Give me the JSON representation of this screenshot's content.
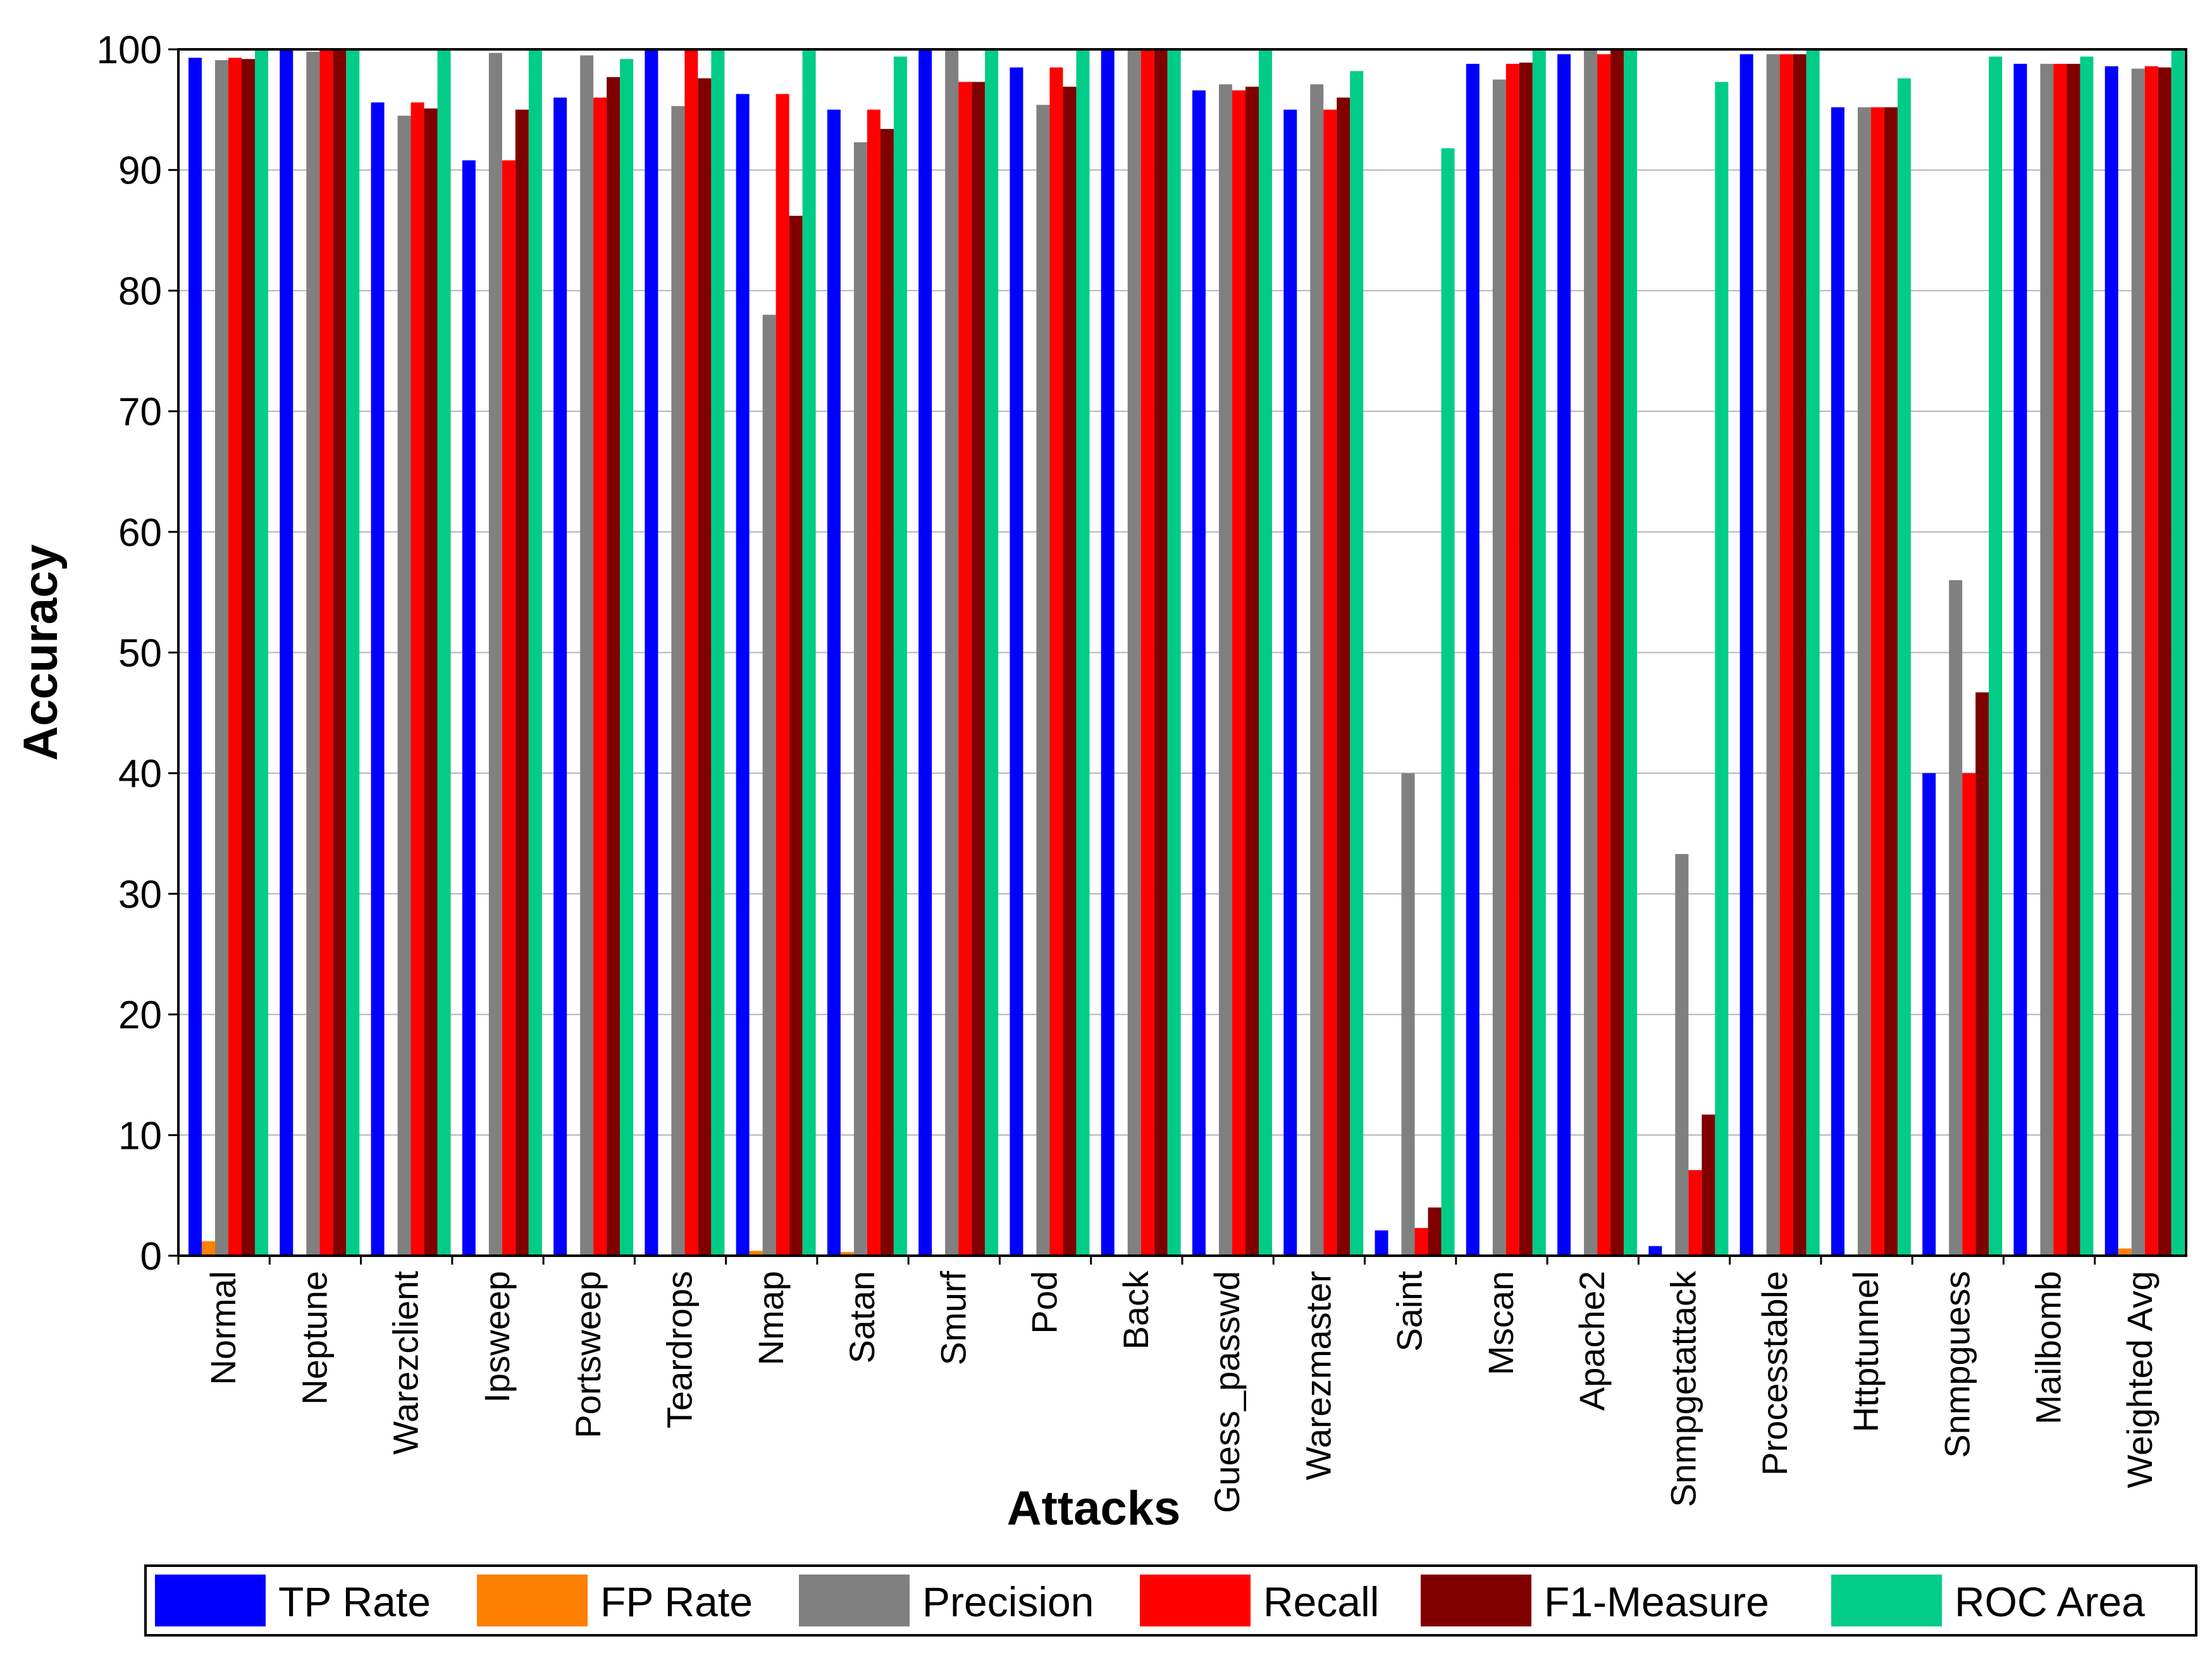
{
  "chart_data": {
    "type": "bar",
    "xlabel": "Attacks",
    "ylabel": "Accuracy",
    "ylim": [
      0,
      100
    ],
    "yticks": [
      "0",
      "10",
      "20",
      "30",
      "40",
      "50",
      "60",
      "70",
      "80",
      "90",
      "100"
    ],
    "grid": "horizontal",
    "legend_position": "bottom",
    "categories": [
      "Normal",
      "Neptune",
      "Warezclient",
      "Ipsweep",
      "Portsweep",
      "Teardrops",
      "Nmap",
      "Satan",
      "Smurf",
      "Pod",
      "Back",
      "Guess_passwd",
      "Warezmaster",
      "Saint",
      "Mscan",
      "Apache2",
      "Snmpgetattack",
      "Processtable",
      "Httptunnel",
      "Snmpguess",
      "Mailbomb",
      "Weighted Avg"
    ],
    "series": [
      {
        "name": "TP Rate",
        "color": "#0000ff",
        "values": [
          99.3,
          100,
          95.6,
          90.8,
          96.0,
          100,
          96.3,
          95.0,
          100,
          98.5,
          100,
          96.6,
          95.0,
          2.1,
          98.8,
          99.6,
          0.8,
          99.6,
          95.2,
          40.0,
          98.8,
          98.6
        ]
      },
      {
        "name": "FP Rate",
        "color": "#ff7f00",
        "values": [
          1.2,
          0,
          0,
          0,
          0,
          0,
          0.4,
          0.3,
          0,
          0,
          0,
          0,
          0,
          0,
          0,
          0,
          0,
          0,
          0,
          0,
          0,
          0.6
        ]
      },
      {
        "name": "Precision",
        "color": "#808080",
        "values": [
          99.1,
          99.8,
          94.5,
          99.7,
          99.5,
          95.3,
          78.0,
          92.3,
          100,
          95.4,
          100,
          97.1,
          97.1,
          40.0,
          97.5,
          100,
          33.3,
          99.6,
          95.2,
          56.0,
          98.8,
          98.4
        ]
      },
      {
        "name": "Recall",
        "color": "#ff0000",
        "values": [
          99.3,
          100,
          95.6,
          90.8,
          96.0,
          100,
          96.3,
          95.0,
          97.3,
          98.5,
          100,
          96.6,
          95.0,
          2.3,
          98.8,
          99.6,
          7.1,
          99.6,
          95.2,
          40.0,
          98.8,
          98.6
        ]
      },
      {
        "name": "F1-Measure",
        "color": "#800000",
        "values": [
          99.2,
          99.9,
          95.1,
          95.0,
          97.7,
          97.6,
          86.2,
          93.4,
          97.3,
          96.9,
          100,
          96.9,
          96.0,
          4.0,
          98.9,
          100,
          11.7,
          99.6,
          95.2,
          46.7,
          98.8,
          98.5
        ]
      },
      {
        "name": "ROC Area",
        "color": "#00cc88",
        "values": [
          100,
          100,
          100,
          100,
          99.2,
          100,
          100,
          99.4,
          100,
          100,
          100,
          100,
          98.2,
          91.8,
          100,
          100,
          97.3,
          100,
          97.6,
          99.4,
          99.4,
          100
        ]
      }
    ]
  }
}
